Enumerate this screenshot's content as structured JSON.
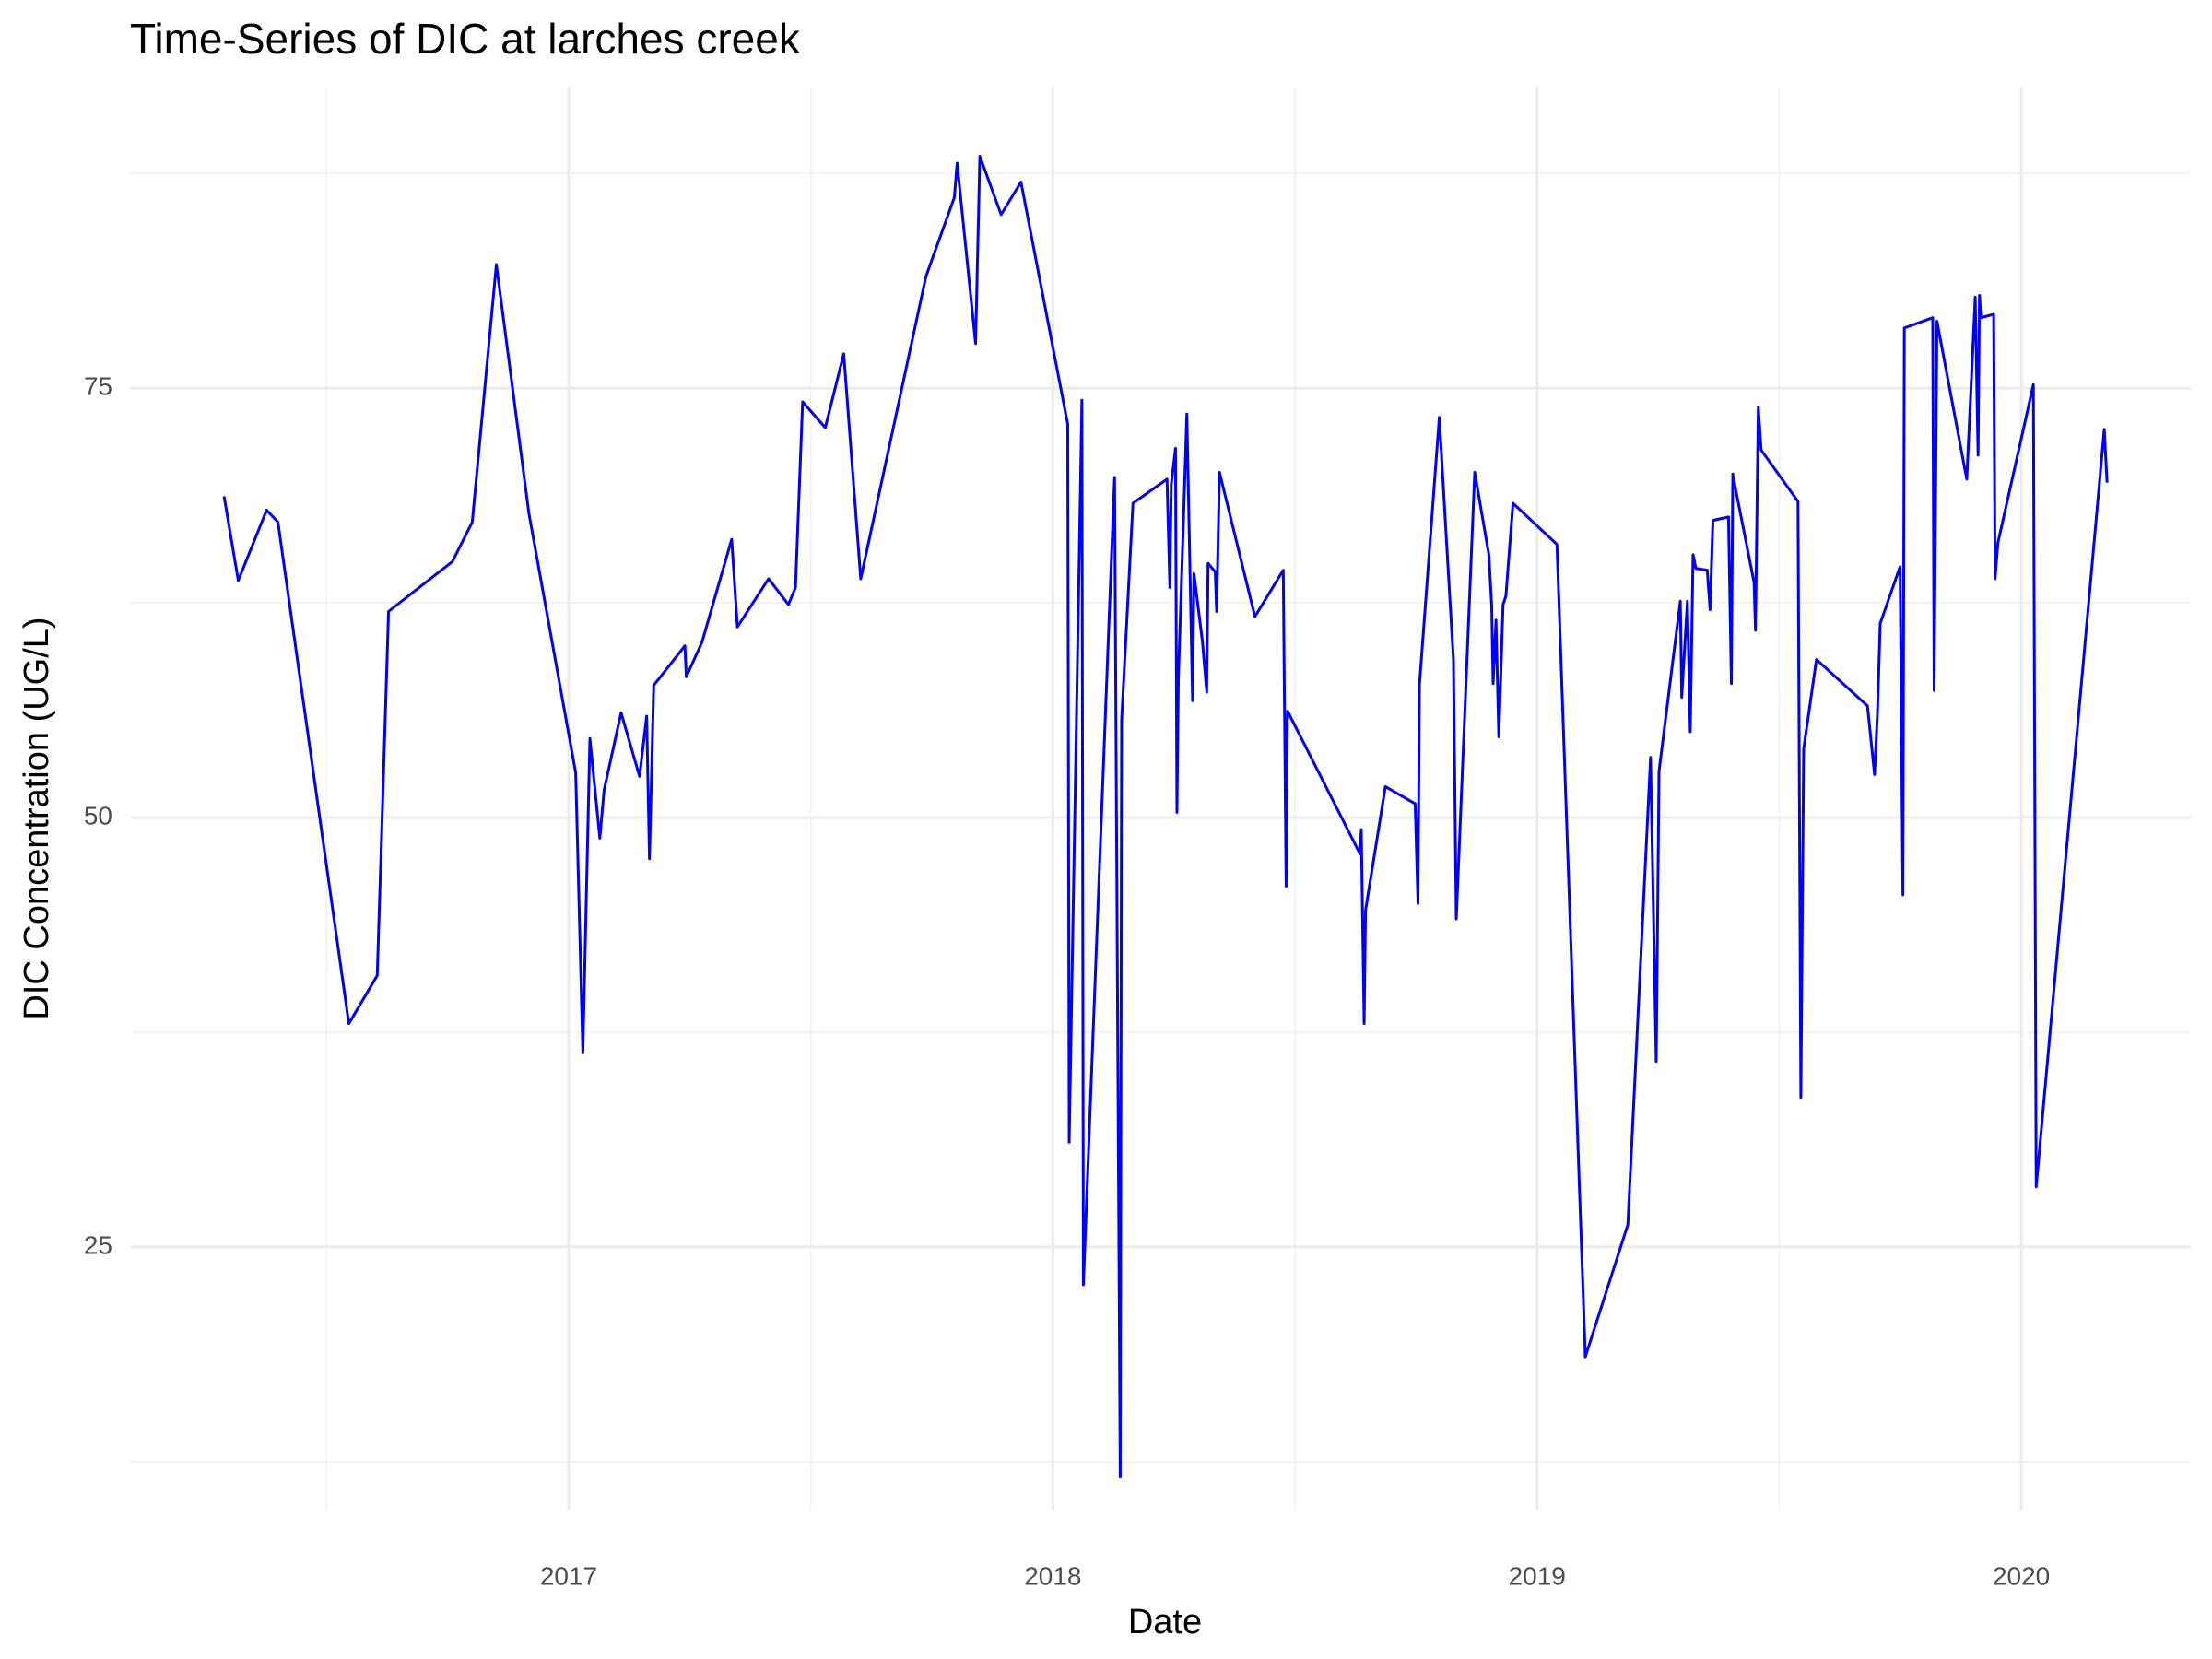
{
  "chart_data": {
    "type": "line",
    "title": "Time-Series of DIC at larches creek",
    "x_label": "Date",
    "y_label": "DIC Concentration (UG/L)",
    "xlim": [
      2016.095,
      2020.35
    ],
    "ylim": [
      9.7,
      92.5
    ],
    "xticks": [
      2017,
      2018,
      2019,
      2020
    ],
    "yticks": [
      25,
      50,
      75
    ],
    "x_minor": [
      2016.5,
      2017.5,
      2018.5,
      2019.5
    ],
    "y_minor": [
      12.5,
      37.5,
      62.5,
      87.5
    ],
    "grid": true,
    "series": [
      {
        "name": "DIC",
        "color": "#0000ff",
        "x": [
          2016.2884,
          2016.3177,
          2016.3763,
          2016.3997,
          2016.5461,
          2016.6047,
          2016.6281,
          2016.7599,
          2016.8009,
          2016.8507,
          2016.918,
          2017.0146,
          2017.0293,
          2017.0439,
          2017.0644,
          2017.0732,
          2017.1083,
          2017.1464,
          2017.1611,
          2017.1669,
          2017.1757,
          2017.2401,
          2017.243,
          2017.2753,
          2017.3367,
          2017.3485,
          2017.4129,
          2017.4539,
          2017.4685,
          2017.4832,
          2017.53,
          2017.5681,
          2017.6032,
          2017.7379,
          2017.7965,
          2017.8023,
          2017.8404,
          2017.8492,
          2017.8931,
          2017.9341,
          2018.0307,
          2018.0337,
          2018.06,
          2018.063,
          2018.1274,
          2018.1391,
          2018.142,
          2018.1654,
          2018.2357,
          2018.2416,
          2018.2445,
          2018.2533,
          2018.2562,
          2018.2591,
          2018.2767,
          2018.2885,
          2018.2914,
          2018.309,
          2018.3177,
          2018.3206,
          2018.3353,
          2018.3382,
          2018.3441,
          2018.4173,
          2018.4758,
          2018.4817,
          2018.4846,
          2018.634,
          2018.6369,
          2018.6428,
          2018.6457,
          2018.6867,
          2018.7482,
          2018.754,
          2018.757,
          2018.798,
          2018.8272,
          2018.8331,
          2018.8712,
          2018.9004,
          2018.9063,
          2018.9092,
          2018.9151,
          2018.9209,
          2018.9297,
          2018.9356,
          2018.9502,
          2019.041,
          2019.0996,
          2019.1874,
          2019.2343,
          2019.246,
          2019.2518,
          2019.2958,
          2019.2987,
          2019.3104,
          2019.3163,
          2019.3221,
          2019.328,
          2019.3514,
          2019.3572,
          2019.3631,
          2019.3953,
          2019.4012,
          2019.4041,
          2019.4129,
          2019.448,
          2019.451,
          2019.4568,
          2019.4627,
          2019.5388,
          2019.5447,
          2019.5505,
          2019.5769,
          2019.6823,
          2019.6969,
          2019.7028,
          2019.7086,
          2019.7496,
          2019.7555,
          2019.7584,
          2019.817,
          2019.8199,
          2019.8258,
          2019.8873,
          2019.9048,
          2019.9107,
          2019.9136,
          2019.9165,
          2019.9429,
          2019.9458,
          2019.9517,
          2020.0249,
          2020.0307,
          2020.1713,
          2020.1771
        ],
        "values": [
          68.7,
          63.8,
          67.9,
          67.2,
          38.0,
          40.8,
          62.0,
          64.9,
          67.2,
          82.2,
          67.7,
          52.6,
          36.3,
          54.6,
          48.8,
          51.6,
          56.1,
          52.4,
          55.9,
          47.6,
          57.7,
          60.0,
          58.2,
          60.2,
          66.2,
          61.1,
          63.9,
          62.4,
          63.4,
          74.2,
          72.7,
          77.0,
          63.9,
          81.5,
          86.1,
          88.1,
          77.6,
          88.5,
          85.1,
          87.0,
          72.9,
          31.1,
          74.3,
          22.8,
          69.8,
          11.6,
          55.7,
          68.3,
          69.7,
          63.4,
          69.4,
          71.5,
          50.3,
          58.0,
          73.5,
          56.8,
          64.2,
          60.2,
          57.3,
          64.8,
          64.3,
          62.0,
          70.1,
          61.7,
          64.4,
          46.0,
          56.2,
          47.9,
          49.3,
          38.0,
          44.6,
          51.8,
          50.8,
          45.0,
          57.7,
          73.3,
          59.2,
          44.1,
          70.1,
          65.3,
          62.3,
          57.8,
          61.5,
          54.7,
          62.4,
          62.9,
          68.3,
          65.9,
          18.6,
          26.3,
          53.5,
          35.8,
          52.7,
          62.6,
          57.0,
          62.6,
          55.0,
          65.3,
          64.5,
          64.4,
          62.1,
          67.3,
          67.5,
          57.8,
          70.0,
          68.7,
          63.7,
          60.9,
          73.9,
          71.4,
          68.4,
          33.7,
          54.0,
          59.2,
          56.5,
          52.5,
          56.0,
          61.3,
          64.6,
          45.5,
          78.5,
          79.1,
          57.4,
          78.9,
          69.7,
          80.3,
          71.1,
          80.4,
          79.1,
          79.3,
          63.9,
          66.0,
          75.2,
          28.5,
          72.6,
          69.5
        ]
      }
    ]
  }
}
